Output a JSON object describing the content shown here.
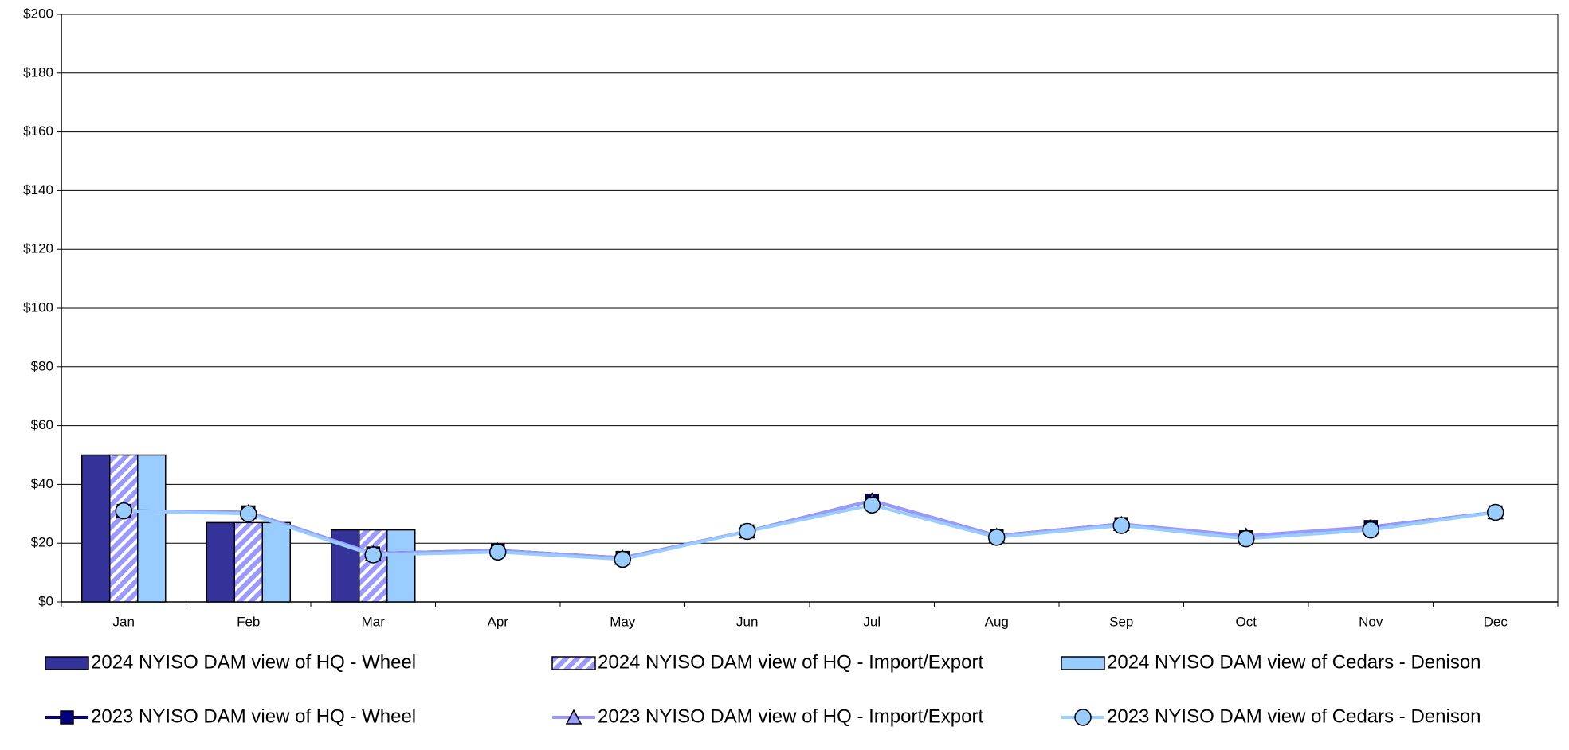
{
  "chart_data": {
    "type": "bar_line",
    "categories": [
      "Jan",
      "Feb",
      "Mar",
      "Apr",
      "May",
      "Jun",
      "Jul",
      "Aug",
      "Sep",
      "Oct",
      "Nov",
      "Dec"
    ],
    "ylim": [
      0,
      200
    ],
    "yticks": [
      {
        "value": 0,
        "label": "$0"
      },
      {
        "value": 20,
        "label": "$20"
      },
      {
        "value": 40,
        "label": "$40"
      },
      {
        "value": 60,
        "label": "$60"
      },
      {
        "value": 80,
        "label": "$80"
      },
      {
        "value": 100,
        "label": "$100"
      },
      {
        "value": 120,
        "label": "$120"
      },
      {
        "value": 140,
        "label": "$140"
      },
      {
        "value": 160,
        "label": "$160"
      },
      {
        "value": 180,
        "label": "$180"
      },
      {
        "value": 200,
        "label": "$200"
      }
    ],
    "grid": true,
    "series": [
      {
        "name": "2024 NYISO DAM view of HQ - Wheel",
        "type": "bar",
        "color": "#333399",
        "values": [
          50,
          27,
          24.5,
          null,
          null,
          null,
          null,
          null,
          null,
          null,
          null,
          null
        ]
      },
      {
        "name": "2024 NYISO DAM view of HQ - Import/Export",
        "type": "bar",
        "color": "#9999ff",
        "hatch": true,
        "values": [
          50,
          27,
          24.5,
          null,
          null,
          null,
          null,
          null,
          null,
          null,
          null,
          null
        ]
      },
      {
        "name": "2024 NYISO DAM view of Cedars - Denison",
        "type": "bar",
        "color": "#99ccff",
        "values": [
          50,
          27,
          24.5,
          null,
          null,
          null,
          null,
          null,
          null,
          null,
          null,
          null
        ]
      },
      {
        "name": "2023 NYISO DAM view of HQ - Wheel",
        "type": "line",
        "color": "#000080",
        "marker": "square",
        "values": [
          31,
          30.5,
          16.5,
          17.5,
          15,
          24,
          34.5,
          22.5,
          26.5,
          22,
          25.5,
          30.5
        ]
      },
      {
        "name": "2023 NYISO DAM view of HQ - Import/Export",
        "type": "line",
        "color": "#9999ff",
        "marker": "triangle",
        "values": [
          31,
          30.5,
          16.5,
          17.5,
          15,
          24,
          34.5,
          22.5,
          26.5,
          22.5,
          25.5,
          30.5
        ]
      },
      {
        "name": "2023 NYISO DAM view of Cedars - Denison",
        "type": "line",
        "color": "#99ccff",
        "marker": "circle",
        "values": [
          31,
          30,
          16,
          17,
          14.5,
          24,
          33,
          22,
          26,
          21.5,
          24.5,
          30.5
        ]
      }
    ]
  }
}
